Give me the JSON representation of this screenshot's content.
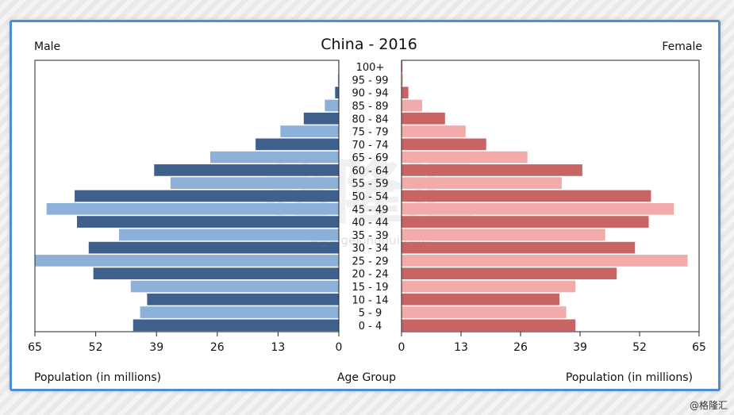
{
  "credit": "@格隆汇",
  "watermark": {
    "main": "格隆汇",
    "url": "www.gelonghui.com"
  },
  "chart_data": {
    "type": "bar",
    "title": "China - 2016",
    "left_label": "Male",
    "right_label": "Female",
    "xlabel_left": "Population (in millions)",
    "xlabel_right": "Population (in millions)",
    "center_label": "Age Group",
    "xlim": [
      0,
      65
    ],
    "ticks": [
      65,
      52,
      39,
      26,
      13,
      0
    ],
    "ticks_right": [
      0,
      13,
      26,
      39,
      52,
      65
    ],
    "categories": [
      "100+",
      "95 - 99",
      "90 - 94",
      "85 - 89",
      "80 - 84",
      "75 - 79",
      "70 - 74",
      "65 - 69",
      "60 - 64",
      "55 - 59",
      "50 - 54",
      "45 - 49",
      "40 - 44",
      "35 - 39",
      "30 - 34",
      "25 - 29",
      "20 - 24",
      "15 - 19",
      "10 - 14",
      "5 - 9",
      "0 - 4"
    ],
    "series": [
      {
        "name": "Male",
        "values": [
          0.1,
          0.2,
          0.8,
          3,
          7.5,
          12.5,
          17.8,
          27.5,
          39.5,
          36,
          56.5,
          62.5,
          56,
          47,
          53.5,
          65,
          52.5,
          44.5,
          41,
          42.5,
          44
        ],
        "colors": [
          "#3f5f8c",
          "#8db0d9"
        ]
      },
      {
        "name": "Female",
        "values": [
          0.2,
          0.3,
          1.5,
          4.5,
          9.5,
          14,
          18.5,
          27.5,
          39.5,
          35,
          54.5,
          59.5,
          54,
          44.5,
          51,
          62.5,
          47,
          38,
          34.5,
          36,
          38
        ],
        "colors": [
          "#c96464",
          "#f2abab"
        ]
      }
    ]
  }
}
